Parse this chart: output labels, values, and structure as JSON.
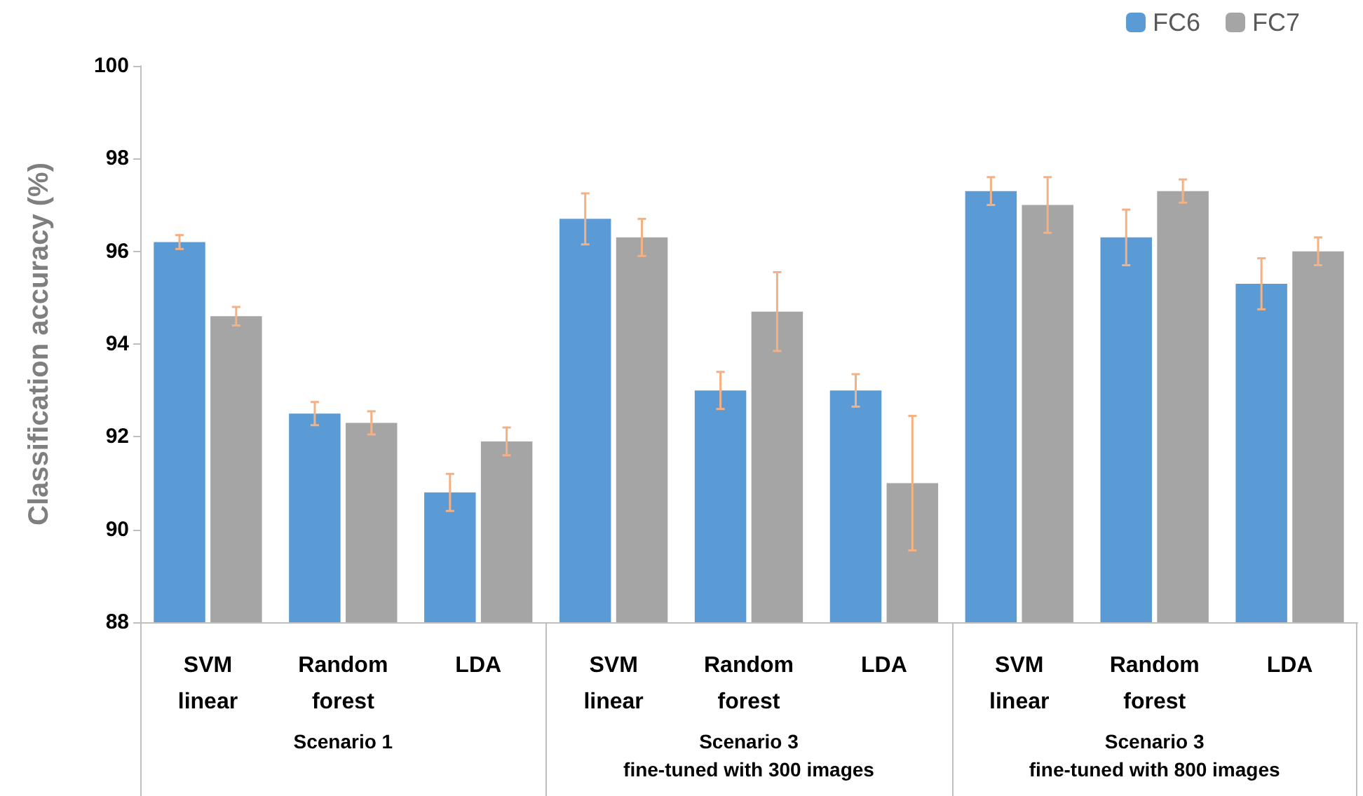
{
  "chart_data": {
    "type": "bar",
    "ylabel": "Classification accuracy (%)",
    "categories": [
      "SVM\nlinear",
      "Random\nforest",
      "LDA",
      "SVM\nlinear",
      "Random\nforest",
      "LDA",
      "SVM\nlinear",
      "Random\nforest",
      "LDA"
    ],
    "annotations": [
      "Scenario 1",
      "Scenario 3\nfine-tuned with 300 images",
      "Scenario 3\nfine-tuned with 800 images"
    ],
    "series": [
      {
        "name": "FC6",
        "color": "#5b9bd5",
        "values": [
          96.2,
          92.5,
          90.8,
          96.7,
          93.0,
          93.0,
          97.3,
          96.3,
          95.3
        ],
        "errors": [
          0.15,
          0.25,
          0.4,
          0.55,
          0.4,
          0.35,
          0.3,
          0.6,
          0.55
        ]
      },
      {
        "name": "FC7",
        "color": "#a5a5a5",
        "values": [
          94.6,
          92.3,
          91.9,
          96.3,
          94.7,
          91.0,
          97.0,
          97.3,
          96.0
        ],
        "errors": [
          0.2,
          0.25,
          0.3,
          0.4,
          0.85,
          1.45,
          0.6,
          0.25,
          0.3
        ]
      }
    ],
    "ylim": [
      88,
      100
    ],
    "yticks": [
      88,
      90,
      92,
      94,
      96,
      98,
      100
    ],
    "grid": false,
    "legend": "top right"
  }
}
